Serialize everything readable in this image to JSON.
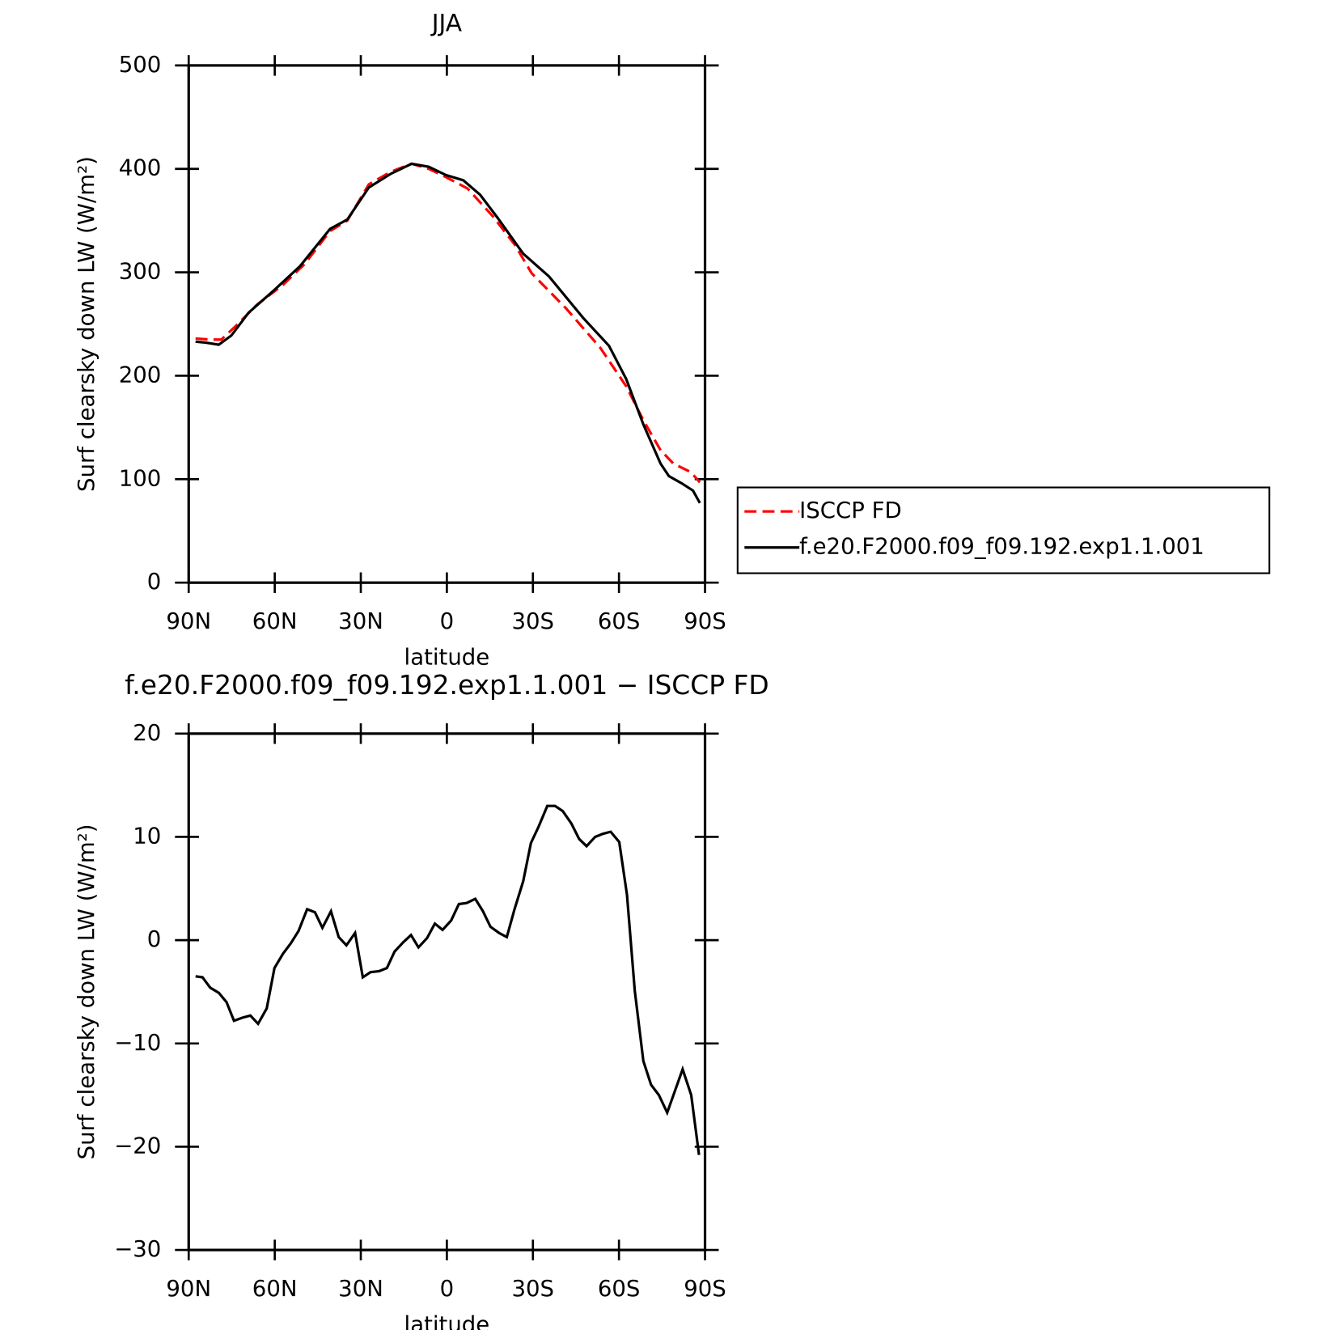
{
  "chart_data": [
    {
      "type": "line",
      "title": "JJA",
      "xlabel": "latitude",
      "ylabel": "Surf clearsky down LW (W/m²)",
      "xlim": [
        90,
        -90
      ],
      "xticks": [
        {
          "value": 90,
          "label": "90N"
        },
        {
          "value": 60,
          "label": "60N"
        },
        {
          "value": 30,
          "label": "30N"
        },
        0,
        {
          "value": -30,
          "label": "30S"
        },
        {
          "value": -60,
          "label": "60S"
        },
        {
          "value": -90,
          "label": "90S"
        }
      ],
      "ylim": [
        0,
        500
      ],
      "yticks": [
        0,
        100,
        200,
        300,
        400,
        500
      ],
      "legend": "right",
      "series": [
        {
          "name": "ISCCP FD",
          "color": "#ff0000",
          "style": "dashed",
          "x": [
            87.6,
            82.5,
            78.6,
            73.6,
            66.1,
            57.1,
            49.6,
            40.7,
            34.7,
            27.2,
            19.7,
            12.3,
            6.3,
            0.3,
            -7.2,
            -16.1,
            -23.6,
            -29.6,
            -41.6,
            -53.5,
            -62.5,
            -68.5,
            -74.5,
            -79.0,
            -85.0,
            -88.2
          ],
          "values": [
            236,
            235,
            235,
            248,
            269,
            288,
            308,
            340,
            350,
            385,
            397,
            405,
            400,
            392,
            381,
            354,
            327,
            299,
            265,
            227,
            190,
            157,
            128,
            115,
            107,
            97
          ]
        },
        {
          "name": "f.e20.F2000.f09_f09.192.exp1.1.001",
          "color": "#000000",
          "style": "solid",
          "x": [
            87.6,
            84.0,
            79.5,
            75.1,
            69.1,
            60.1,
            51.2,
            40.7,
            34.7,
            27.2,
            19.7,
            12.3,
            6.3,
            0.3,
            -5.7,
            -11.6,
            -17.6,
            -26.6,
            -35.6,
            -47.5,
            -56.5,
            -62.5,
            -68.5,
            -74.5,
            -77.4,
            -81.9,
            -85.8,
            -88.2
          ],
          "values": [
            233,
            232,
            230,
            239,
            261,
            283,
            306,
            342,
            351,
            382,
            395,
            405,
            402,
            394,
            389,
            375,
            353,
            318,
            296,
            256,
            229,
            197,
            153,
            115,
            103,
            96,
            89,
            77
          ]
        }
      ]
    },
    {
      "type": "line",
      "title": "f.e20.F2000.f09_f09.192.exp1.1.001 − ISCCP FD",
      "xlabel": "latitude",
      "ylabel": "Surf clearsky down LW (W/m²)",
      "xlim": [
        90,
        -90
      ],
      "xticks": [
        {
          "value": 90,
          "label": "90N"
        },
        {
          "value": 60,
          "label": "60N"
        },
        {
          "value": 30,
          "label": "30N"
        },
        0,
        {
          "value": -30,
          "label": "30S"
        },
        {
          "value": -60,
          "label": "60S"
        },
        {
          "value": -90,
          "label": "90S"
        }
      ],
      "ylim": [
        -30,
        20
      ],
      "yticks": [
        {
          "value": -30,
          "label": "−30"
        },
        {
          "value": -20,
          "label": "−20"
        },
        {
          "value": -10,
          "label": "−10"
        },
        0,
        10,
        20
      ],
      "color": "#000000",
      "x": [
        87.6,
        85.2,
        82.5,
        79.5,
        76.8,
        74.2,
        71.2,
        68.5,
        65.8,
        62.8,
        60.1,
        57.1,
        54.4,
        51.7,
        48.7,
        46.0,
        43.4,
        40.4,
        37.7,
        35.0,
        32.0,
        29.3,
        26.6,
        23.6,
        20.9,
        18.2,
        15.2,
        12.5,
        9.9,
        6.9,
        4.2,
        1.5,
        -1.5,
        -4.2,
        -6.9,
        -9.9,
        -12.6,
        -15.2,
        -18.2,
        -20.9,
        -23.6,
        -26.6,
        -29.3,
        -32.0,
        -35.0,
        -37.7,
        -40.4,
        -43.4,
        -46.1,
        -48.7,
        -51.7,
        -54.4,
        -57.1,
        -60.1,
        -62.8,
        -65.5,
        -68.5,
        -71.2,
        -73.9,
        -76.8,
        -79.5,
        -82.2,
        -85.2,
        -87.9
      ],
      "values": [
        -3.5,
        -3.6,
        -4.6,
        -5.1,
        -6.0,
        -7.8,
        -7.5,
        -7.3,
        -8.1,
        -6.6,
        -2.7,
        -1.3,
        -0.3,
        0.9,
        3.0,
        2.7,
        1.2,
        2.8,
        0.3,
        -0.5,
        0.7,
        -3.6,
        -3.1,
        -3.0,
        -2.7,
        -1.1,
        -0.2,
        0.5,
        -0.7,
        0.2,
        1.6,
        1.0,
        1.9,
        3.5,
        3.6,
        4.0,
        2.8,
        1.3,
        0.7,
        0.3,
        3.0,
        5.7,
        9.4,
        11.0,
        13.0,
        13.0,
        12.5,
        11.3,
        9.8,
        9.1,
        10.0,
        10.3,
        10.5,
        9.5,
        4.4,
        -4.9,
        -11.7,
        -14.0,
        -15.0,
        -16.7,
        -14.6,
        -12.5,
        -15.0,
        -20.8
      ]
    }
  ]
}
